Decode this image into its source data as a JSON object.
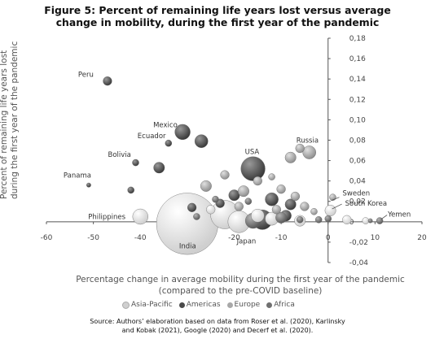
{
  "chart_data": {
    "type": "scatter",
    "title": "Figure 5: Percent of remaining life years lost versus average change in mobility, during the first year of the pandemic",
    "title_lines": [
      "Figure 5: Percent of remaining life years lost versus average",
      "change in mobility, during the first year of the pandemic"
    ],
    "xlabel": "Percentage change in average mobility during the first year of the pandemic (compared to the pre-COVID baseline)",
    "xlabel_lines": [
      "Percentage change in average mobility during the first year of the pandemic",
      "(compared to the pre-COVID baseline)"
    ],
    "ylabel": "Percent of remaining life years lost during the first year of the pandemic",
    "ylabel_lines": [
      "Percent of remaining life years lost",
      "during the first year of the pandemic"
    ],
    "xlim": [
      -60,
      20
    ],
    "ylim": [
      -0.04,
      0.18
    ],
    "xticks": [
      "-60",
      "-50",
      "-40",
      "-30",
      "-20",
      "-10",
      "0",
      "10",
      "20"
    ],
    "yticks": [
      "-0,04",
      "-0,02",
      "0",
      "0,02",
      "0,04",
      "0,06",
      "0,08",
      "0,10",
      "0,12",
      "0,14",
      "0,16",
      "0,18"
    ],
    "grid": false,
    "legend_position": "bottom",
    "series": [
      {
        "name": "Asia-Pacific",
        "color": "#cfcfcf",
        "points": [
          {
            "x": -30,
            "y": -0.002,
            "size": 28,
            "label": "India"
          },
          {
            "x": -40,
            "y": 0.005,
            "size": 7,
            "label": "Philippines"
          },
          {
            "x": 0.5,
            "y": 0.011,
            "size": 5,
            "label": "South Korea"
          },
          {
            "x": -22,
            "y": 0.007,
            "size": 13
          },
          {
            "x": -19,
            "y": 0.0,
            "size": 10
          },
          {
            "x": -15,
            "y": 0.006,
            "size": 6
          },
          {
            "x": -12,
            "y": 0.003,
            "size": 6
          },
          {
            "x": -6,
            "y": 0.001,
            "size": 5
          },
          {
            "x": 4,
            "y": 0.002,
            "size": 4
          },
          {
            "x": 8,
            "y": 0.001,
            "size": 3
          },
          {
            "x": -25,
            "y": 0.012,
            "size": 4
          }
        ]
      },
      {
        "name": "Americas",
        "color": "#4a4a4a",
        "points": [
          {
            "x": -47,
            "y": 0.138,
            "size": 4,
            "label": "Peru"
          },
          {
            "x": -31,
            "y": 0.088,
            "size": 7,
            "label": "Mexico"
          },
          {
            "x": -34,
            "y": 0.077,
            "size": 3,
            "label": "Ecuador"
          },
          {
            "x": -16,
            "y": 0.052,
            "size": 11,
            "label": "USA"
          },
          {
            "x": -41,
            "y": 0.058,
            "size": 3,
            "label": "Bolivia"
          },
          {
            "x": -51,
            "y": 0.036,
            "size": 2,
            "label": "Panama"
          },
          {
            "x": -27,
            "y": 0.079,
            "size": 6
          },
          {
            "x": -36,
            "y": 0.053,
            "size": 5
          },
          {
            "x": -42,
            "y": 0.031,
            "size": 3
          },
          {
            "x": -14,
            "y": 0.002,
            "size": 9
          },
          {
            "x": -12,
            "y": 0.022,
            "size": 6
          },
          {
            "x": -20,
            "y": 0.026,
            "size": 5
          },
          {
            "x": -23,
            "y": 0.018,
            "size": 4
          },
          {
            "x": -8,
            "y": 0.017,
            "size": 5
          },
          {
            "x": -29,
            "y": 0.014,
            "size": 4
          },
          {
            "x": -9,
            "y": 0.006,
            "size": 5
          }
        ]
      },
      {
        "name": "Europe",
        "color": "#a8a8a8",
        "points": [
          {
            "x": -4,
            "y": 0.068,
            "size": 6,
            "label": "Russia"
          },
          {
            "x": 1,
            "y": 0.024,
            "size": 3,
            "label": "Sweden"
          },
          {
            "x": -26,
            "y": 0.035,
            "size": 5
          },
          {
            "x": -18,
            "y": 0.03,
            "size": 5
          },
          {
            "x": -10,
            "y": 0.032,
            "size": 4
          },
          {
            "x": -8,
            "y": 0.063,
            "size": 5
          },
          {
            "x": -6,
            "y": 0.072,
            "size": 4
          },
          {
            "x": -15,
            "y": 0.04,
            "size": 4
          },
          {
            "x": -22,
            "y": 0.046,
            "size": 4
          },
          {
            "x": -5,
            "y": 0.015,
            "size": 4
          },
          {
            "x": -3,
            "y": 0.01,
            "size": 3
          },
          {
            "x": -12,
            "y": 0.044,
            "size": 3
          },
          {
            "x": -19,
            "y": 0.015,
            "size": 4
          },
          {
            "x": -7,
            "y": 0.025,
            "size": 4
          },
          {
            "x": -11,
            "y": 0.012,
            "size": 4
          }
        ]
      },
      {
        "name": "Africa",
        "color": "#707070",
        "points": [
          {
            "x": 11,
            "y": 0.001,
            "size": 3,
            "label": "Yemen"
          },
          {
            "x": -16,
            "y": 0.001,
            "size": 7,
            "label": "Japan"
          },
          {
            "x": -10,
            "y": 0.004,
            "size": 5
          },
          {
            "x": -2,
            "y": 0.002,
            "size": 3
          },
          {
            "x": 0,
            "y": 0.003,
            "size": 3
          },
          {
            "x": -28,
            "y": 0.005,
            "size": 3
          },
          {
            "x": -24,
            "y": 0.022,
            "size": 3
          },
          {
            "x": -17,
            "y": 0.02,
            "size": 3
          },
          {
            "x": 9,
            "y": 0.001,
            "size": 2
          },
          {
            "x": -6,
            "y": 0.002,
            "size": 3
          }
        ]
      }
    ],
    "labels_text": {
      "India": "India",
      "Japan": "Japan",
      "Philippines": "Philippines",
      "South Korea": "South Korea",
      "Sweden": "Sweden",
      "Yemen": "Yemen",
      "Peru": "Peru",
      "Mexico": "Mexico",
      "Ecuador": "Ecuador",
      "USA": "USA",
      "Russia": "Russia",
      "Bolivia": "Bolivia",
      "Panama": "Panama"
    },
    "source_lines": [
      "Source: Authors’ elaboration based on data from Roser et al. (2020), Karlinsky",
      "and Kobak (2021), Google (2020) and Decerf et al. (2020)."
    ]
  }
}
